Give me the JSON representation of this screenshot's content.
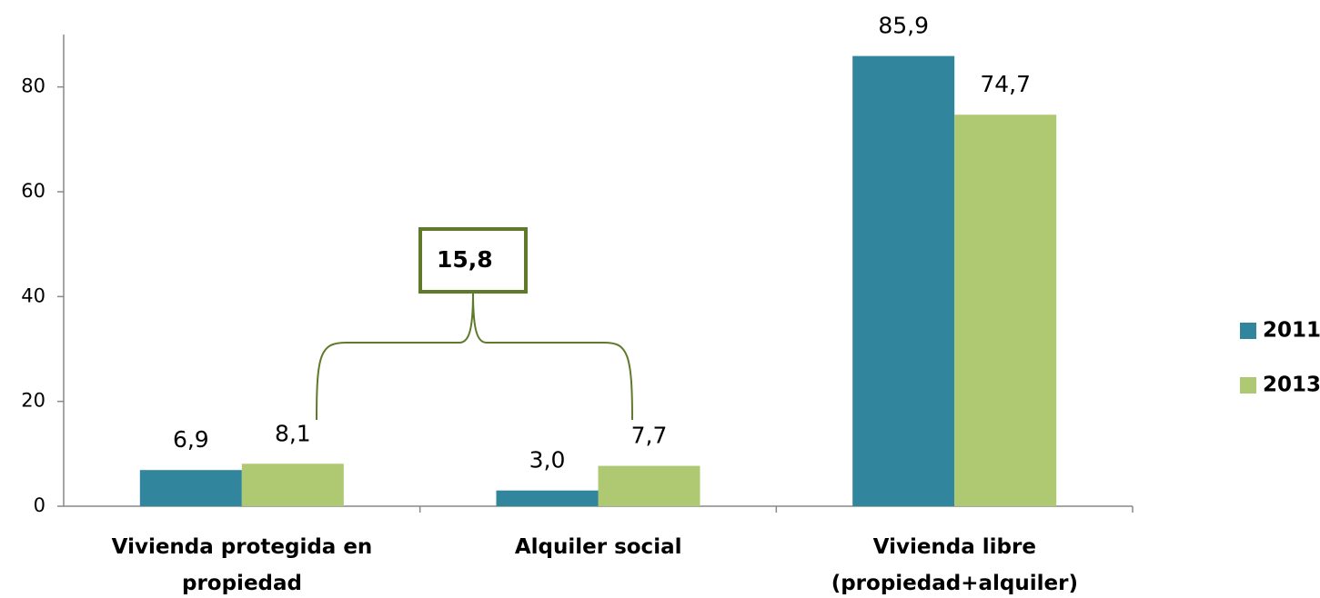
{
  "chart_data": {
    "type": "bar",
    "categories": [
      "Vivienda protegida en\npropiedad",
      "Alquiler social",
      "Vivienda libre\n(propiedad+alquiler)"
    ],
    "series": [
      {
        "name": "2011",
        "color": "#31859c",
        "values": [
          6.9,
          3.0,
          85.9
        ],
        "value_labels": [
          "6,9",
          "3,0",
          "85,9"
        ]
      },
      {
        "name": "2013",
        "color": "#afc872",
        "values": [
          8.1,
          7.7,
          74.7
        ],
        "value_labels": [
          "8,1",
          "7,7",
          "74,7"
        ]
      }
    ],
    "annotation": "15,8",
    "ylim": [
      0,
      90
    ],
    "yticks": [
      0,
      20,
      40,
      60,
      80
    ],
    "grid": false,
    "legend": "right"
  }
}
